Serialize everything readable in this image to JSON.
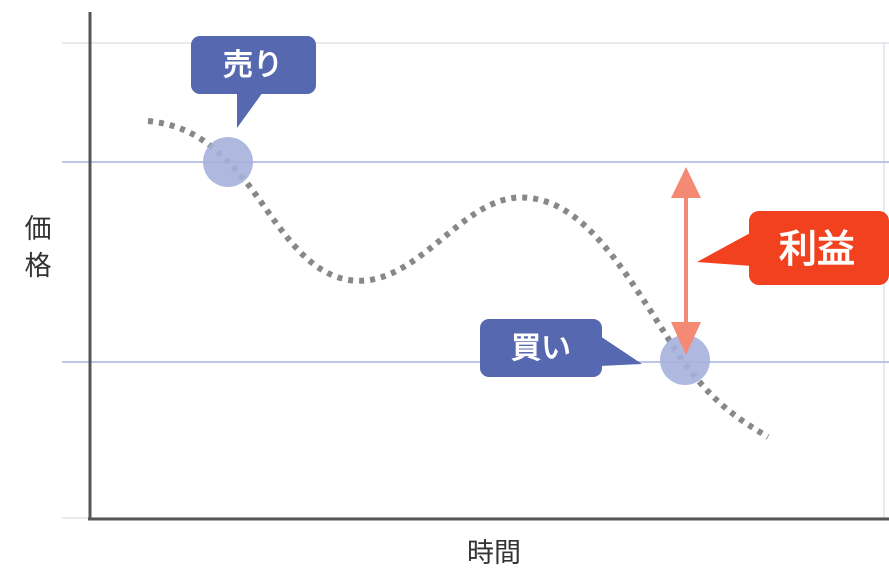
{
  "labels": {
    "y_axis": "価格",
    "x_axis": "時間",
    "sell": "売り",
    "buy": "買い",
    "profit": "利益"
  },
  "colors": {
    "axis": "#555555",
    "gridline_light": "#e2e4ea",
    "price_line": "#a8b4df",
    "curve": "#888888",
    "point": "#a6b0dc",
    "tag_fill": "#5568b0",
    "profit_fill": "#f2411e",
    "arrow": "#f58a74"
  },
  "icons": {
    "arrow": "double-headed-vertical-arrow"
  }
}
